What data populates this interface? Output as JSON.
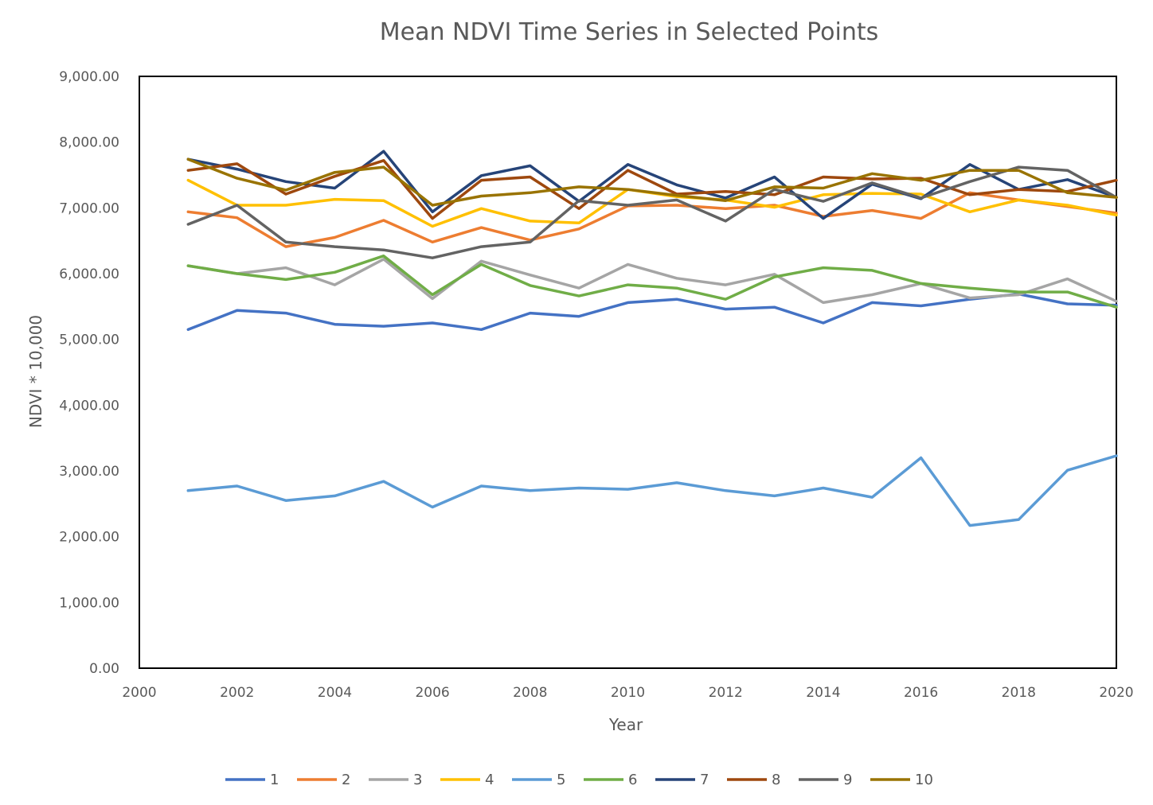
{
  "chart_data": {
    "type": "line",
    "title": "Mean NDVI Time Series in Selected Points",
    "xlabel": "Year",
    "ylabel": "NDVI * 10,000",
    "xlim": [
      2000,
      2020
    ],
    "ylim": [
      0,
      9000
    ],
    "x_ticks": [
      2000,
      2002,
      2004,
      2006,
      2008,
      2010,
      2012,
      2014,
      2016,
      2018,
      2020
    ],
    "x_tick_labels": [
      "2000",
      "2002",
      "2004",
      "2006",
      "2008",
      "2010",
      "2012",
      "2014",
      "2016",
      "2018",
      "2020"
    ],
    "y_ticks": [
      0,
      1000,
      2000,
      3000,
      4000,
      5000,
      6000,
      7000,
      8000,
      9000
    ],
    "y_tick_labels": [
      "0.00",
      "1,000.00",
      "2,000.00",
      "3,000.00",
      "4,000.00",
      "5,000.00",
      "6,000.00",
      "7,000.00",
      "8,000.00",
      "9,000.00"
    ],
    "grid": false,
    "legend_position": "bottom",
    "x": [
      2001,
      2002,
      2003,
      2004,
      2005,
      2006,
      2007,
      2008,
      2009,
      2010,
      2011,
      2012,
      2013,
      2014,
      2015,
      2016,
      2017,
      2018,
      2019,
      2020
    ],
    "series": [
      {
        "name": "1",
        "color": "#4472C4",
        "values": [
          5150,
          5440,
          5400,
          5230,
          5200,
          5250,
          5150,
          5400,
          5350,
          5560,
          5610,
          5460,
          5490,
          5250,
          5560,
          5510,
          5610,
          5690,
          5540,
          5520
        ]
      },
      {
        "name": "2",
        "color": "#ED7D31",
        "values": [
          6940,
          6850,
          6410,
          6550,
          6810,
          6480,
          6700,
          6510,
          6680,
          7030,
          7040,
          6990,
          7040,
          6870,
          6960,
          6840,
          7230,
          7120,
          7020,
          6920
        ]
      },
      {
        "name": "3",
        "color": "#A5A5A5",
        "values": [
          6120,
          6000,
          6090,
          5830,
          6220,
          5620,
          6190,
          5980,
          5780,
          6140,
          5930,
          5830,
          5990,
          5560,
          5680,
          5850,
          5630,
          5680,
          5920,
          5580
        ]
      },
      {
        "name": "4",
        "color": "#FFC000",
        "values": [
          7420,
          7040,
          7040,
          7130,
          7110,
          6720,
          6990,
          6800,
          6770,
          7280,
          7170,
          7120,
          7010,
          7200,
          7220,
          7210,
          6940,
          7120,
          7040,
          6890
        ]
      },
      {
        "name": "5",
        "color": "#5B9BD5",
        "values": [
          2700,
          2770,
          2550,
          2620,
          2840,
          2450,
          2770,
          2700,
          2740,
          2720,
          2820,
          2700,
          2620,
          2740,
          2600,
          3200,
          2170,
          2260,
          3010,
          3230
        ]
      },
      {
        "name": "6",
        "color": "#70AD47",
        "values": [
          6120,
          6000,
          5910,
          6020,
          6270,
          5680,
          6140,
          5820,
          5660,
          5830,
          5780,
          5610,
          5950,
          6090,
          6050,
          5850,
          5780,
          5720,
          5720,
          5490
        ]
      },
      {
        "name": "7",
        "color": "#264478",
        "values": [
          7740,
          7590,
          7400,
          7300,
          7860,
          6940,
          7490,
          7640,
          7100,
          7660,
          7350,
          7150,
          7470,
          6840,
          7360,
          7140,
          7660,
          7280,
          7430,
          7160
        ]
      },
      {
        "name": "8",
        "color": "#9E480E",
        "values": [
          7570,
          7670,
          7210,
          7480,
          7720,
          6840,
          7420,
          7470,
          6990,
          7570,
          7210,
          7250,
          7200,
          7470,
          7440,
          7450,
          7200,
          7280,
          7250,
          7420
        ]
      },
      {
        "name": "9",
        "color": "#636363",
        "values": [
          6750,
          7040,
          6480,
          6410,
          6360,
          6240,
          6410,
          6480,
          7110,
          7040,
          7120,
          6800,
          7280,
          7100,
          7380,
          7150,
          7400,
          7620,
          7570,
          7160
        ]
      },
      {
        "name": "10",
        "color": "#997300",
        "values": [
          7740,
          7450,
          7270,
          7540,
          7620,
          7040,
          7180,
          7230,
          7320,
          7280,
          7190,
          7110,
          7320,
          7300,
          7520,
          7420,
          7570,
          7570,
          7230,
          7160
        ]
      }
    ]
  }
}
